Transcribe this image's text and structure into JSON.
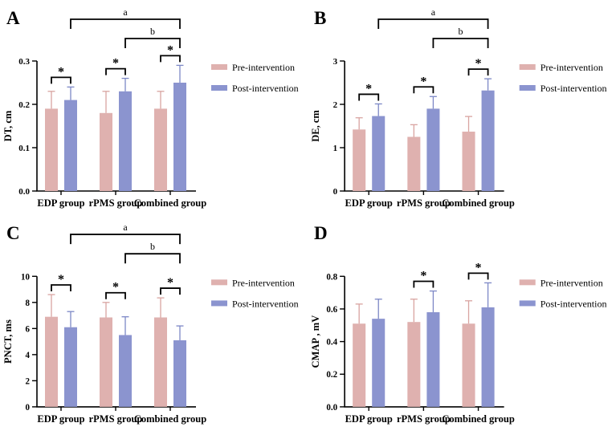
{
  "figure": {
    "legend": {
      "items": [
        {
          "name": "pre",
          "label": "Pre-intervention",
          "color": "#DFB1AF",
          "error_color": "#D9A4A1"
        },
        {
          "name": "post",
          "label": "Post-intervention",
          "color": "#8B94CF",
          "error_color": "#7D88C6"
        }
      ]
    },
    "colors": {
      "axis": "#000000",
      "background": "#FFFFFF",
      "significance": "#000000"
    }
  },
  "chart_data": [
    {
      "type": "bar",
      "panel": "A",
      "ylabel": "DT, cm",
      "xlabel": "",
      "ylim": [
        0,
        0.3
      ],
      "yticks": [
        0,
        0.1,
        0.2,
        0.3
      ],
      "ytick_labels": [
        "0.0",
        "0.1",
        "0.2",
        "0.3"
      ],
      "categories": [
        "EDP group",
        "rPMS group",
        "Combined group"
      ],
      "series": [
        {
          "name": "Pre-intervention",
          "values": [
            0.19,
            0.18,
            0.19
          ],
          "errors": [
            0.04,
            0.05,
            0.04
          ]
        },
        {
          "name": "Post-intervention",
          "values": [
            0.21,
            0.23,
            0.25
          ],
          "errors": [
            0.03,
            0.03,
            0.04
          ]
        }
      ],
      "sig_pairs": [
        {
          "group": 0,
          "label": "*"
        },
        {
          "group": 1,
          "label": "*"
        },
        {
          "group": 2,
          "label": "*"
        }
      ],
      "sig_brackets": [
        {
          "label": "a",
          "from_group": 0,
          "to_group": 2
        },
        {
          "label": "b",
          "from_group": 1,
          "to_group": 2
        }
      ],
      "legend_position": "right",
      "grid": false
    },
    {
      "type": "bar",
      "panel": "B",
      "ylabel": "DE, cm",
      "xlabel": "",
      "ylim": [
        0,
        3
      ],
      "yticks": [
        0,
        1,
        2,
        3
      ],
      "ytick_labels": [
        "0",
        "1",
        "2",
        "3"
      ],
      "categories": [
        "EDP group",
        "rPMS group",
        "Combined group"
      ],
      "series": [
        {
          "name": "Pre-intervention",
          "values": [
            1.42,
            1.25,
            1.37
          ],
          "errors": [
            0.27,
            0.28,
            0.35
          ]
        },
        {
          "name": "Post-intervention",
          "values": [
            1.73,
            1.9,
            2.32
          ],
          "errors": [
            0.28,
            0.28,
            0.27
          ]
        }
      ],
      "sig_pairs": [
        {
          "group": 0,
          "label": "*"
        },
        {
          "group": 1,
          "label": "*"
        },
        {
          "group": 2,
          "label": "*"
        }
      ],
      "sig_brackets": [
        {
          "label": "a",
          "from_group": 0,
          "to_group": 2
        },
        {
          "label": "b",
          "from_group": 1,
          "to_group": 2
        }
      ],
      "legend_position": "right",
      "grid": false
    },
    {
      "type": "bar",
      "panel": "C",
      "ylabel": "PNCT, ms",
      "xlabel": "",
      "ylim": [
        0,
        10
      ],
      "yticks": [
        0,
        2,
        4,
        6,
        8,
        10
      ],
      "ytick_labels": [
        "0",
        "2",
        "4",
        "6",
        "8",
        "10"
      ],
      "categories": [
        "EDP group",
        "rPMS group",
        "Combined group"
      ],
      "series": [
        {
          "name": "Pre-intervention",
          "values": [
            6.9,
            6.85,
            6.85
          ],
          "errors": [
            1.7,
            1.15,
            1.5
          ]
        },
        {
          "name": "Post-intervention",
          "values": [
            6.1,
            5.5,
            5.1
          ],
          "errors": [
            1.2,
            1.4,
            1.1
          ]
        }
      ],
      "sig_pairs": [
        {
          "group": 0,
          "label": "*"
        },
        {
          "group": 1,
          "label": "*"
        },
        {
          "group": 2,
          "label": "*"
        }
      ],
      "sig_brackets": [
        {
          "label": "a",
          "from_group": 0,
          "to_group": 2
        },
        {
          "label": "b",
          "from_group": 1,
          "to_group": 2
        }
      ],
      "legend_position": "right",
      "grid": false
    },
    {
      "type": "bar",
      "panel": "D",
      "ylabel": "CMAP , mV",
      "xlabel": "",
      "ylim": [
        0,
        0.8
      ],
      "yticks": [
        0,
        0.2,
        0.4,
        0.6,
        0.8
      ],
      "ytick_labels": [
        "0.0",
        "0.2",
        "0.4",
        "0.6",
        "0.8"
      ],
      "categories": [
        "EDP group",
        "rPMS group",
        "Combined group"
      ],
      "series": [
        {
          "name": "Pre-intervention",
          "values": [
            0.51,
            0.52,
            0.51
          ],
          "errors": [
            0.12,
            0.14,
            0.14
          ]
        },
        {
          "name": "Post-intervention",
          "values": [
            0.54,
            0.58,
            0.61
          ],
          "errors": [
            0.12,
            0.13,
            0.15
          ]
        }
      ],
      "sig_pairs": [
        {
          "group": 1,
          "label": "*"
        },
        {
          "group": 2,
          "label": "*"
        }
      ],
      "sig_brackets": [],
      "legend_position": "right",
      "grid": false
    }
  ]
}
